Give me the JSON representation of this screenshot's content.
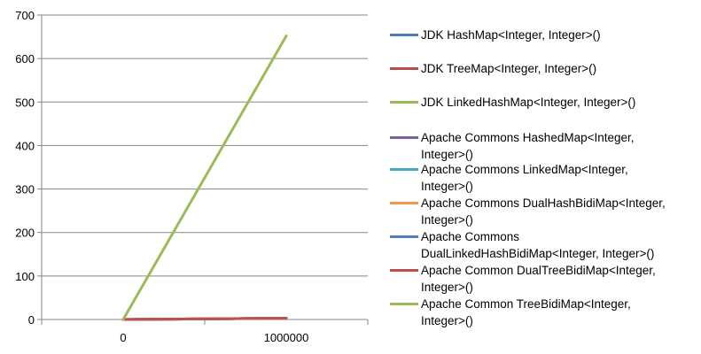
{
  "chart_data": {
    "type": "line",
    "categories": [
      "0",
      "1000000"
    ],
    "ylim": [
      0,
      700
    ],
    "yticks": [
      0,
      100,
      200,
      300,
      400,
      500,
      600,
      700
    ],
    "grid": true,
    "legend_position": "right",
    "series": [
      {
        "name": "JDK HashMap<Integer, Integer>()",
        "values": [
          0,
          3
        ],
        "color": "#4a7ebb"
      },
      {
        "name": "JDK TreeMap<Integer, Integer>()",
        "values": [
          0,
          3
        ],
        "color": "#be4b48"
      },
      {
        "name": "JDK LinkedHashMap<Integer, Integer>()",
        "values": [
          0,
          3
        ],
        "color": "#98b954"
      },
      {
        "name": "Apache Commons HashedMap<Integer, Integer>()",
        "values": [
          0,
          3
        ],
        "color": "#7d60a0"
      },
      {
        "name": "Apache Commons LinkedMap<Integer, Integer>()",
        "values": [
          0,
          3
        ],
        "color": "#46aac5"
      },
      {
        "name": "Apache Commons DualHashBidiMap<Integer, Integer>()",
        "values": [
          0,
          3
        ],
        "color": "#f79646"
      },
      {
        "name": "Apache Commons DualLinkedHashBidiMap<Integer, Integer>()",
        "values": [
          0,
          3
        ],
        "color": "#4f81bd"
      },
      {
        "name": "Apache Common DualTreeBidiMap<Integer, Integer>()",
        "values": [
          0,
          3
        ],
        "color": "#c0504d"
      },
      {
        "name": "Apache Common TreeBidiMap<Integer, Integer>()",
        "values": [
          0,
          652
        ],
        "color": "#9bbb59"
      }
    ]
  },
  "legend": {
    "items": [
      {
        "lines": [
          "JDK HashMap<Integer, Integer>()"
        ]
      },
      {
        "lines": [
          "JDK TreeMap<Integer, Integer>()"
        ]
      },
      {
        "lines": [
          "JDK LinkedHashMap<Integer, Integer>()"
        ]
      },
      {
        "lines": [
          "Apache Commons HashedMap<Integer,",
          "Integer>()"
        ]
      },
      {
        "lines": [
          "Apache Commons LinkedMap<Integer,",
          "Integer>()"
        ]
      },
      {
        "lines": [
          "Apache Commons DualHashBidiMap<Integer,",
          "Integer>()"
        ]
      },
      {
        "lines": [
          "Apache Commons",
          "DualLinkedHashBidiMap<Integer, Integer>()"
        ]
      },
      {
        "lines": [
          "Apache Common DualTreeBidiMap<Integer,",
          "Integer>()"
        ]
      },
      {
        "lines": [
          "Apache Common TreeBidiMap<Integer,",
          "Integer>()"
        ]
      }
    ]
  }
}
